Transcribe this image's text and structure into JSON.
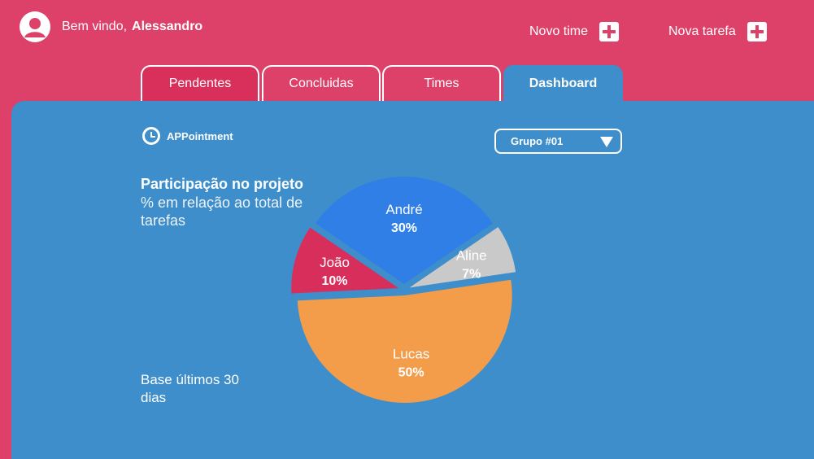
{
  "header": {
    "greeting": "Bem vindo,",
    "user_name": "Alessandro",
    "new_team_label": "Novo time",
    "new_task_label": "Nova tarefa"
  },
  "tabs": [
    {
      "label": "Pendentes",
      "active": false
    },
    {
      "label": "Concluidas",
      "active": false
    },
    {
      "label": "Times",
      "active": false
    },
    {
      "label": "Dashboard",
      "active": true
    }
  ],
  "logo_text": "APPointment",
  "group_select": {
    "selected": "Grupo #01"
  },
  "colors": {
    "background": "#dd4068",
    "panel": "#3d8ecb",
    "white": "#ffffff"
  },
  "chart_data": {
    "type": "pie",
    "title": "Participação no projeto",
    "subtitle": "% em relação ao total de tarefas",
    "note": "Base últimos 30 dias",
    "slices": [
      {
        "name": "André",
        "label": "30%",
        "value": 30,
        "color": "#2f7fe7"
      },
      {
        "name": "Aline",
        "label": "7%",
        "value": 7,
        "color": "#c9c9c9"
      },
      {
        "name": "Lucas",
        "label": "50%",
        "value": 50,
        "color": "#f39c4a"
      },
      {
        "name": "João",
        "label": "10%",
        "label_prefix": "",
        "value": 10,
        "color": "#d82e5b"
      }
    ]
  }
}
